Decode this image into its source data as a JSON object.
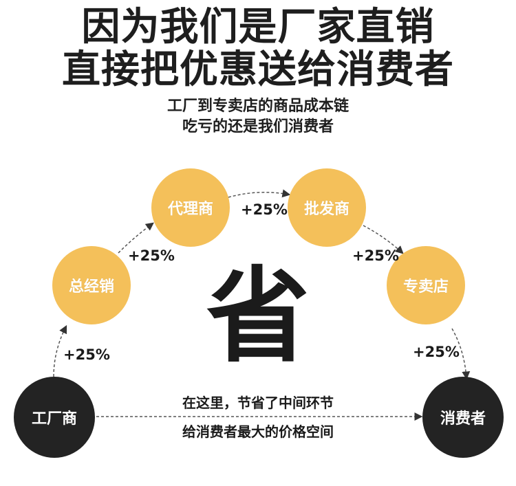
{
  "headline": {
    "line1": "因为我们是厂家直销",
    "line2": "直接把优惠送给消费者"
  },
  "subheadline": {
    "line1": "工厂到专卖店的商品成本链",
    "line2": "吃亏的还是我们消费者"
  },
  "nodes": {
    "factory": "工厂商",
    "general_distributor": "总经销",
    "agent": "代理商",
    "wholesaler": "批发商",
    "store": "专卖店",
    "consumer": "消费者"
  },
  "markups": {
    "m1": "+25%",
    "m2": "+25%",
    "m3": "+25%",
    "m4": "+25%",
    "m5": "+25%"
  },
  "center_char": "省",
  "bottom_note": {
    "line1": "在这里，节省了中间环节",
    "line2": "给消费者最大的价格空间"
  },
  "colors": {
    "node_yellow": "#f4c05a",
    "node_dark": "#232323",
    "text_dark": "#1e1e1e"
  }
}
